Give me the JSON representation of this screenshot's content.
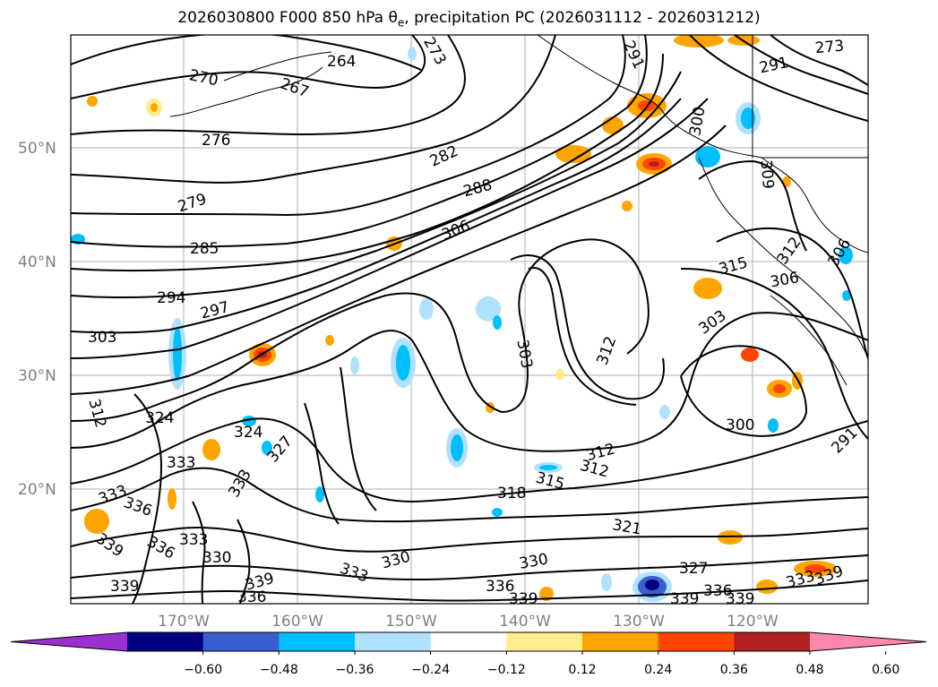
{
  "title": {
    "prefix": "2026030800 F000 850 hPa θ",
    "subscript": "e",
    "suffix": ", precipitation PC (2026031112 - 2026031212)"
  },
  "latitude_labels": [
    "50°N",
    "40°N",
    "30°N",
    "20°N"
  ],
  "longitude_labels": [
    "170°W",
    "160°W",
    "150°W",
    "140°W",
    "130°W",
    "120°W"
  ],
  "colorbar": {
    "ticks": [
      "−0.60",
      "−0.48",
      "−0.36",
      "−0.24",
      "−0.12",
      "0.12",
      "0.24",
      "0.36",
      "0.48",
      "0.60"
    ],
    "colors": [
      "#9b30d0",
      "#000080",
      "#3a5fcd",
      "#00bfff",
      "#b0e2ff",
      "#ffffff",
      "#ffec8b",
      "#ffa500",
      "#ff4500",
      "#b22222",
      "#ff88aa"
    ]
  },
  "contour_labels": [
    "270",
    "276",
    "279",
    "285",
    "294",
    "297",
    "303",
    "312",
    "324",
    "327",
    "333",
    "336",
    "339",
    "330",
    "282",
    "288",
    "306",
    "291",
    "300",
    "309",
    "315",
    "318",
    "321",
    "273",
    "264",
    "267"
  ],
  "colors": {
    "contour": "#000000",
    "grid": "#b0b0b0",
    "axis_label": "#808080"
  }
}
